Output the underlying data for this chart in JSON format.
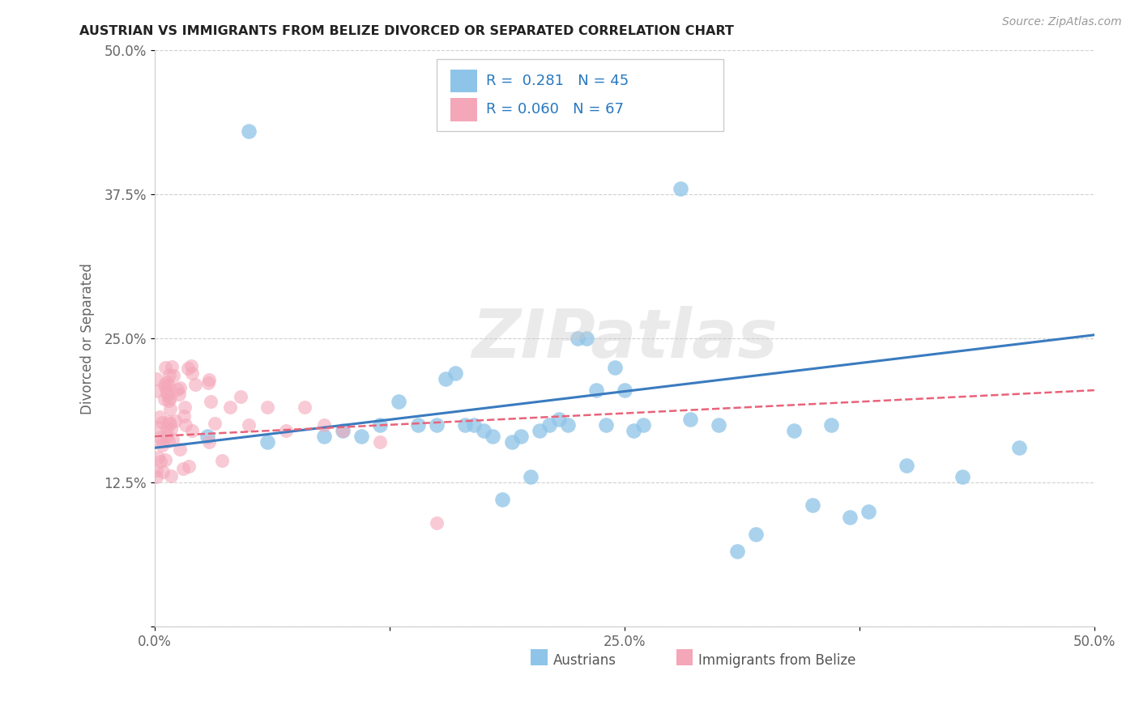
{
  "title": "AUSTRIAN VS IMMIGRANTS FROM BELIZE DIVORCED OR SEPARATED CORRELATION CHART",
  "source": "Source: ZipAtlas.com",
  "ylabel": "Divorced or Separated",
  "xlim": [
    0.0,
    0.5
  ],
  "ylim": [
    0.0,
    0.5
  ],
  "xticks": [
    0.0,
    0.125,
    0.25,
    0.375,
    0.5
  ],
  "yticks": [
    0.0,
    0.125,
    0.25,
    0.375,
    0.5
  ],
  "xtick_labels": [
    "0.0%",
    "",
    "25.0%",
    "",
    "50.0%"
  ],
  "ytick_labels": [
    "",
    "12.5%",
    "25.0%",
    "37.5%",
    "50.0%"
  ],
  "legend_label1": "Austrians",
  "legend_label2": "Immigrants from Belize",
  "r1": "0.281",
  "n1": "45",
  "r2": "0.060",
  "n2": "67",
  "blue_color": "#8ec4e8",
  "pink_color": "#f4a7b9",
  "blue_line_color": "#3a7bbf",
  "pink_line_color": "#e8637a",
  "watermark": "ZIPatlas",
  "austrians_x": [
    0.028,
    0.05,
    0.06,
    0.09,
    0.1,
    0.11,
    0.12,
    0.13,
    0.14,
    0.15,
    0.155,
    0.16,
    0.165,
    0.17,
    0.175,
    0.18,
    0.185,
    0.19,
    0.195,
    0.2,
    0.205,
    0.21,
    0.215,
    0.22,
    0.225,
    0.23,
    0.235,
    0.24,
    0.245,
    0.25,
    0.255,
    0.26,
    0.28,
    0.285,
    0.3,
    0.31,
    0.32,
    0.34,
    0.35,
    0.36,
    0.37,
    0.38,
    0.4,
    0.43,
    0.46
  ],
  "austrians_y": [
    0.165,
    0.43,
    0.16,
    0.165,
    0.17,
    0.165,
    0.175,
    0.195,
    0.175,
    0.175,
    0.215,
    0.22,
    0.175,
    0.175,
    0.17,
    0.165,
    0.11,
    0.16,
    0.165,
    0.13,
    0.17,
    0.175,
    0.18,
    0.175,
    0.25,
    0.25,
    0.205,
    0.175,
    0.225,
    0.205,
    0.17,
    0.175,
    0.38,
    0.18,
    0.175,
    0.065,
    0.08,
    0.17,
    0.105,
    0.175,
    0.095,
    0.1,
    0.14,
    0.13,
    0.155
  ],
  "blue_line_x": [
    0.0,
    0.5
  ],
  "blue_line_y": [
    0.155,
    0.253
  ],
  "pink_line_x": [
    0.0,
    0.5
  ],
  "pink_line_y": [
    0.165,
    0.205
  ]
}
